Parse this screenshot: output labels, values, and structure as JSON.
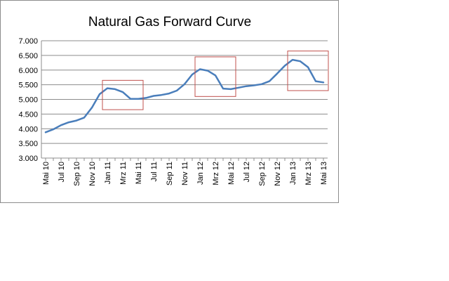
{
  "chart_data": {
    "type": "line",
    "title": "Natural Gas Forward Curve",
    "xlabel": "",
    "ylabel": "",
    "ylim": [
      3.0,
      7.0
    ],
    "y_ticks": [
      "3.000",
      "3.500",
      "4.000",
      "4.500",
      "5.000",
      "5.500",
      "6.000",
      "6.500",
      "7.000"
    ],
    "x_tick_labels": [
      "Mai 10",
      "Jul 10",
      "Sep 10",
      "Nov 10",
      "Jan 11",
      "Mrz 11",
      "Mai 11",
      "Jul 11",
      "Sep 11",
      "Nov 11",
      "Jan 12",
      "Mrz 12",
      "Mai 12",
      "Jul 12",
      "Sep 12",
      "Nov 12",
      "Jan 13",
      "Mrz 13",
      "Mai 13"
    ],
    "x": [
      "Mai 10",
      "Jun 10",
      "Jul 10",
      "Aug 10",
      "Sep 10",
      "Okt 10",
      "Nov 10",
      "Dez 10",
      "Jan 11",
      "Feb 11",
      "Mrz 11",
      "Apr 11",
      "Mai 11",
      "Jun 11",
      "Jul 11",
      "Aug 11",
      "Sep 11",
      "Okt 11",
      "Nov 11",
      "Dez 11",
      "Jan 12",
      "Feb 12",
      "Mrz 12",
      "Apr 12",
      "Mai 12",
      "Jun 12",
      "Jul 12",
      "Aug 12",
      "Sep 12",
      "Okt 12",
      "Nov 12",
      "Dez 12",
      "Jan 13",
      "Feb 13",
      "Mrz 13",
      "Apr 13",
      "Mai 13"
    ],
    "series": [
      {
        "values": [
          3.88,
          3.98,
          4.12,
          4.22,
          4.28,
          4.38,
          4.72,
          5.18,
          5.38,
          5.35,
          5.25,
          5.02,
          5.02,
          5.05,
          5.12,
          5.15,
          5.2,
          5.3,
          5.52,
          5.85,
          6.03,
          5.98,
          5.82,
          5.37,
          5.35,
          5.4,
          5.45,
          5.48,
          5.52,
          5.62,
          5.88,
          6.15,
          6.35,
          6.3,
          6.1,
          5.62,
          5.58
        ],
        "color": "#4a7ebb"
      }
    ],
    "highlight_boxes": [
      {
        "x_from": "Jan 11",
        "x_to": "Mai 11",
        "y_from": 4.65,
        "y_to": 5.65
      },
      {
        "x_from": "Jan 12",
        "x_to": "Mai 12",
        "y_from": 5.1,
        "y_to": 6.45
      },
      {
        "x_from": "Jan 13",
        "x_to": "Mai 13",
        "y_from": 5.3,
        "y_to": 6.65
      }
    ],
    "highlight_color": "#c0504d",
    "grid": true,
    "legend": "none"
  }
}
